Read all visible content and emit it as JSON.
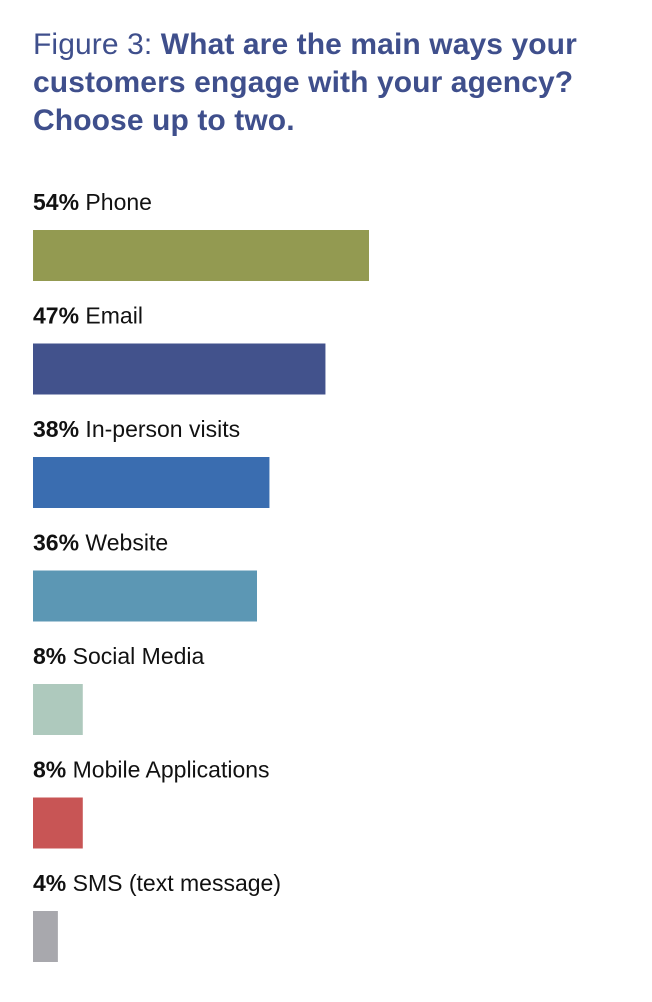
{
  "figure": {
    "prefix": "Figure 3:",
    "question": "What are the main ways your customers engage with your agency? Choose up to two."
  },
  "chart_data": {
    "type": "bar",
    "orientation": "horizontal",
    "categories": [
      "Phone",
      "Email",
      "In-person visits",
      "Website",
      "Social Media",
      "Mobile Applications",
      "SMS (text message)"
    ],
    "values": [
      54,
      47,
      38,
      36,
      8,
      8,
      4
    ],
    "value_labels": [
      "54%",
      "47%",
      "38%",
      "36%",
      "8%",
      "8%",
      "4%"
    ],
    "colors": [
      "#939a51",
      "#42528c",
      "#3a6db0",
      "#5c97b4",
      "#aec9bd",
      "#c85555",
      "#a8a8ad"
    ],
    "title": "Figure 3: What are the main ways your customers engage with your agency? Choose up to two.",
    "xlabel": "",
    "ylabel": "",
    "grid": false,
    "legend": "none"
  }
}
